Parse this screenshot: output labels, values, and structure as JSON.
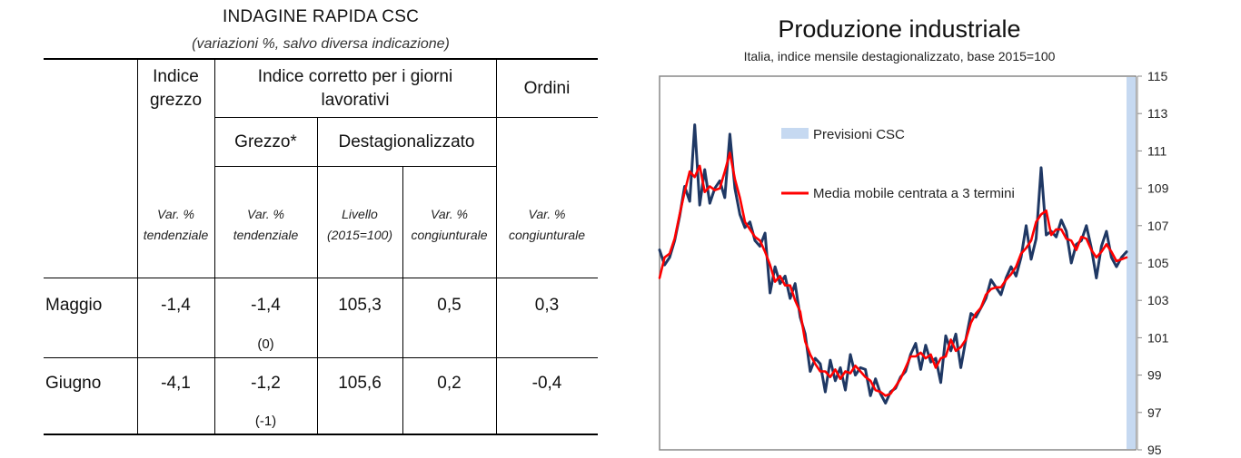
{
  "table": {
    "title": "INDAGINE RAPIDA CSC",
    "subtitle": "(variazioni %, salvo diversa indicazione)",
    "headers": {
      "indice_grezzo": [
        "Indice",
        "grezzo"
      ],
      "indice_corretto": [
        "Indice corretto per i giorni",
        "lavorativi"
      ],
      "ordini": "Ordini",
      "grezzo_star": "Grezzo*",
      "destagionalizzato": "Destagionalizzato"
    },
    "subheaders": [
      [
        "Var. %",
        "tendenziale"
      ],
      [
        "Var. %",
        "tendenziale"
      ],
      [
        "Livello",
        "(2015=100)"
      ],
      [
        "Var. %",
        "congiunturale"
      ],
      [
        "Var. %",
        "congiunturale"
      ]
    ],
    "rows": [
      {
        "label": "Maggio",
        "values": [
          "-1,4",
          "-1,4",
          "105,3",
          "0,5",
          "0,3"
        ],
        "paren": "(0)"
      },
      {
        "label": "Giugno",
        "values": [
          "-4,1",
          "-1,2",
          "105,6",
          "0,2",
          "-0,4"
        ],
        "paren": "(-1)"
      }
    ]
  },
  "chart_data": {
    "type": "line",
    "title": "Produzione industriale",
    "subtitle": "Italia, indice mensile destagionalizzato, base 2015=100",
    "ylim": [
      95,
      115
    ],
    "yticks": [
      "95",
      "97",
      "99",
      "101",
      "103",
      "105",
      "107",
      "109",
      "111",
      "113",
      "115"
    ],
    "grid": false,
    "legend_placement": "inside-top-left",
    "forecast_band_label": "Previsioni CSC",
    "series": [
      {
        "role": "monthly-index",
        "color": "#1f3864",
        "values": [
          105.7,
          104.9,
          105.3,
          106.2,
          107.5,
          109.1,
          108.3,
          112.4,
          108.1,
          110.0,
          108.2,
          109.0,
          109.4,
          108.5,
          111.9,
          109.0,
          107.6,
          106.9,
          107.2,
          106.2,
          105.9,
          106.6,
          103.4,
          104.8,
          103.9,
          104.3,
          103.1,
          103.9,
          102.1,
          101.2,
          99.2,
          99.9,
          99.6,
          98.1,
          99.8,
          98.7,
          99.4,
          98.2,
          100.1,
          99.0,
          99.4,
          99.3,
          97.9,
          98.8,
          98.0,
          97.5,
          98.1,
          98.3,
          98.9,
          99.2,
          100.1,
          100.7,
          99.3,
          100.6,
          99.7,
          99.9,
          98.6,
          101.1,
          100.3,
          101.2,
          99.4,
          100.9,
          102.3,
          102.1,
          102.6,
          103.1,
          104.1,
          103.7,
          103.3,
          104.2,
          104.8,
          104.3,
          105.3,
          107.0,
          105.2,
          106.3,
          110.1,
          106.5,
          106.7,
          106.4,
          107.3,
          106.7,
          105.0,
          106.0,
          106.2,
          107.0,
          105.8,
          104.2,
          105.9,
          106.7,
          105.3,
          104.8,
          105.3,
          105.6
        ]
      },
      {
        "name": "Media mobile centrata a 3 termini",
        "color": "#ff0000",
        "values": [
          104.2,
          105.3,
          105.5,
          106.3,
          107.6,
          108.8,
          109.9,
          109.6,
          110.2,
          108.8,
          109.1,
          108.9,
          109.0,
          109.9,
          110.9,
          109.5,
          108.5,
          107.2,
          106.8,
          106.4,
          106.2,
          105.6,
          104.9,
          104.0,
          104.3,
          103.8,
          103.8,
          103.0,
          102.4,
          100.8,
          100.1,
          99.6,
          99.2,
          99.2,
          98.9,
          99.3,
          98.8,
          99.2,
          99.1,
          99.5,
          99.2,
          98.9,
          98.7,
          98.2,
          98.1,
          97.9,
          98.0,
          98.4,
          98.8,
          99.4,
          100.0,
          100.0,
          100.2,
          99.9,
          100.1,
          99.4,
          99.9,
          100.0,
          100.9,
          100.3,
          100.5,
          100.9,
          101.8,
          102.3,
          102.6,
          103.3,
          103.6,
          103.7,
          103.7,
          104.1,
          104.4,
          104.8,
          105.5,
          105.8,
          106.2,
          107.2,
          107.6,
          107.8,
          106.5,
          106.8,
          106.8,
          106.3,
          106.2,
          105.7,
          106.4,
          106.3,
          105.7,
          105.3,
          105.6,
          106.0,
          105.6,
          105.1,
          105.2,
          105.3
        ]
      }
    ]
  }
}
